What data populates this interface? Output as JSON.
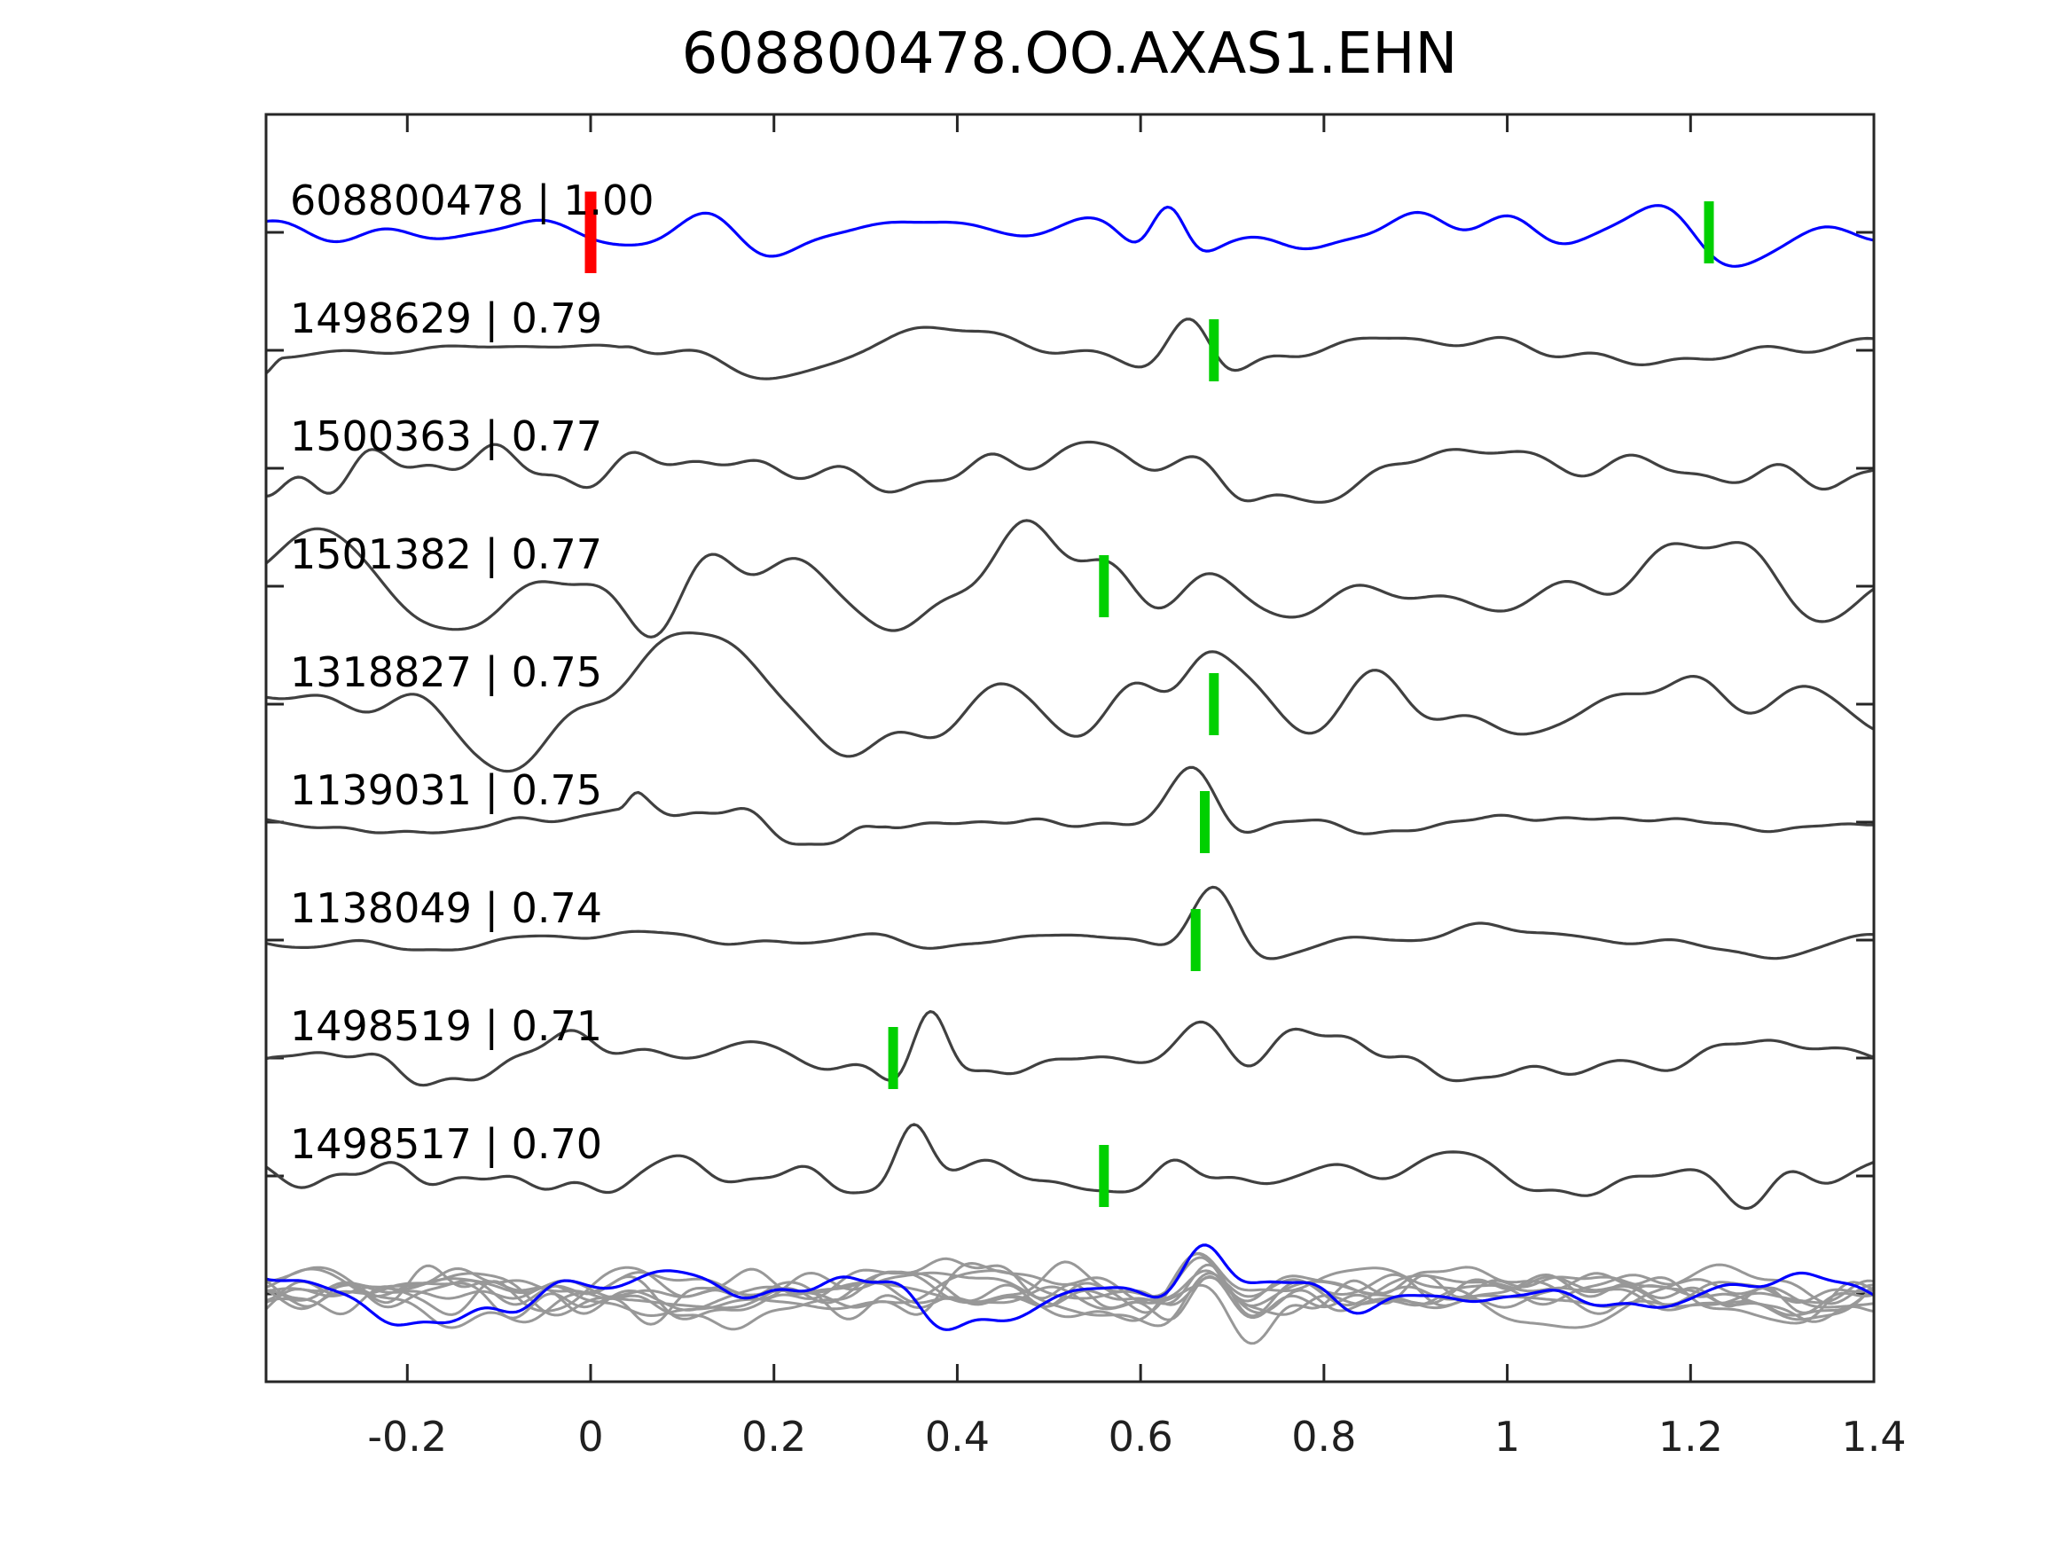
{
  "chart_data": {
    "type": "line",
    "title": "608800478.OO.AXAS1.EHN",
    "xlabel": "",
    "ylabel": "",
    "grid": false,
    "legend": null,
    "axis": {
      "xmin": -0.354,
      "xmax": 1.4,
      "xticks": [
        {
          "label": "-0.2",
          "value": -0.2
        },
        {
          "label": "0",
          "value": 0.0
        },
        {
          "label": "0.2",
          "value": 0.2
        },
        {
          "label": "0.4",
          "value": 0.4
        },
        {
          "label": "0.6",
          "value": 0.6
        },
        {
          "label": "0.8",
          "value": 0.8
        },
        {
          "label": "1",
          "value": 1.0
        },
        {
          "label": "1.2",
          "value": 1.2
        },
        {
          "label": "1.4",
          "value": 1.4
        }
      ]
    },
    "colors": {
      "template_trace": "#0000FF",
      "detection_trace": "#404040",
      "overlay_trace": "#989898",
      "origin_marker": "#FF0000",
      "pick_marker": "#00D000",
      "axis": "#262626",
      "text": "#000000"
    },
    "traces": [
      {
        "id": "608800478",
        "correlation": "1.00",
        "label": "608800478 | 1.00",
        "role": "template",
        "markers": [
          {
            "x": 0.0,
            "color": "#FF0000",
            "kind": "origin"
          },
          {
            "x": 1.22,
            "color": "#00D000",
            "kind": "pick"
          }
        ],
        "wave": {
          "seed": 11,
          "base": 26,
          "fscale": 1.15,
          "events": [
            {
              "x": 0.63,
              "amp": 38,
              "f": 9,
              "w": 0.04
            }
          ]
        }
      },
      {
        "id": "1498629",
        "correlation": "0.79",
        "label": "1498629 | 0.79",
        "role": "detection",
        "markers": [
          {
            "x": 0.68,
            "color": "#00D000",
            "kind": "pick"
          }
        ],
        "wave": {
          "seed": 22,
          "base": 26,
          "fscale": 1.2,
          "segments": [
            {
              "x0": -0.36,
              "x1": 0.03,
              "amp": 8
            }
          ],
          "events": [
            {
              "x": 0.655,
              "amp": 50,
              "f": 6.5,
              "w": 0.05
            }
          ]
        }
      },
      {
        "id": "1500363",
        "correlation": "0.77",
        "label": "1500363 | 0.77",
        "role": "detection",
        "markers": [],
        "wave": {
          "seed": 33,
          "base": 28,
          "fscale": 1.35,
          "events": [
            {
              "x": 0.71,
              "amp": -42,
              "f": 6,
              "w": 0.05
            }
          ]
        }
      },
      {
        "id": "1501382",
        "correlation": "0.77",
        "label": "1501382 | 0.77",
        "role": "detection",
        "markers": [
          {
            "x": 0.56,
            "color": "#00D000",
            "kind": "pick"
          }
        ],
        "wave": {
          "seed": 44,
          "base": 48,
          "fscale": 0.9,
          "events": []
        }
      },
      {
        "id": "1318827",
        "correlation": "0.75",
        "label": "1318827 | 0.75",
        "role": "detection",
        "markers": [
          {
            "x": 0.68,
            "color": "#00D000",
            "kind": "pick"
          }
        ],
        "wave": {
          "seed": 55,
          "base": 46,
          "fscale": 1.05,
          "events": [
            {
              "x": 0.665,
              "amp": 30,
              "f": 7,
              "w": 0.05
            }
          ]
        }
      },
      {
        "id": "1139031",
        "correlation": "0.75",
        "label": "1139031 | 0.75",
        "role": "detection",
        "markers": [
          {
            "x": 0.67,
            "color": "#00D000",
            "kind": "pick"
          }
        ],
        "wave": {
          "seed": 66,
          "base": 12,
          "fscale": 1.25,
          "segments": [
            {
              "x0": 0.03,
              "x1": 0.3,
              "amp": 30
            }
          ],
          "events": [
            {
              "x": 0.655,
              "amp": 55,
              "f": 6,
              "w": 0.05
            }
          ]
        }
      },
      {
        "id": "1138049",
        "correlation": "0.74",
        "label": "1138049 | 0.74",
        "role": "detection",
        "markers": [
          {
            "x": 0.66,
            "color": "#00D000",
            "kind": "pick"
          }
        ],
        "wave": {
          "seed": 7,
          "base": 12,
          "fscale": 1.1,
          "events": [
            {
              "x": 0.68,
              "amp": 62,
              "f": 5.5,
              "w": 0.05
            }
          ]
        }
      },
      {
        "id": "1498519",
        "correlation": "0.71",
        "label": "1498519 | 0.71",
        "role": "detection",
        "markers": [
          {
            "x": 0.33,
            "color": "#00D000",
            "kind": "pick"
          }
        ],
        "wave": {
          "seed": 88,
          "base": 25,
          "fscale": 1.15,
          "events": [
            {
              "x": 0.37,
              "amp": 58,
              "f": 8,
              "w": 0.04
            },
            {
              "x": 0.66,
              "amp": 45,
              "f": 6.5,
              "w": 0.055
            }
          ]
        }
      },
      {
        "id": "1498517",
        "correlation": "0.70",
        "label": "1498517 | 0.70",
        "role": "detection",
        "markers": [
          {
            "x": 0.56,
            "color": "#00D000",
            "kind": "pick"
          }
        ],
        "wave": {
          "seed": 99,
          "base": 23,
          "fscale": 1.2,
          "events": [
            {
              "x": 0.35,
              "amp": 50,
              "f": 8.5,
              "w": 0.04
            },
            {
              "x": 0.64,
              "amp": 34,
              "f": 7,
              "w": 0.05
            },
            {
              "x": 1.26,
              "amp": -36,
              "f": 6,
              "w": 0.05
            }
          ]
        }
      }
    ],
    "overlay_panel": {
      "gray_trace_count": 9,
      "has_template_trace": true,
      "gray_seeds": [
        101,
        102,
        103,
        104,
        105,
        106,
        107,
        108,
        109
      ],
      "template_seed": 77,
      "wave": {
        "base": 25,
        "fscale": 1.2,
        "events": [
          {
            "x": 0.67,
            "amp": 32,
            "f": 7,
            "w": 0.05
          }
        ]
      }
    }
  }
}
